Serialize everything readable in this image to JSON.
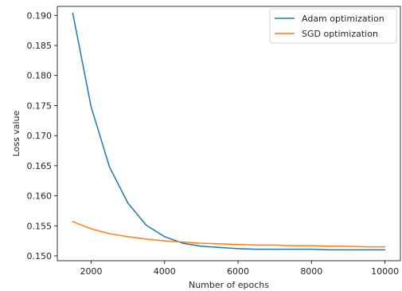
{
  "chart_data": {
    "type": "line",
    "title": "",
    "xlabel": "Number of epochs",
    "ylabel": "Loss value",
    "xlim": [
      1080,
      10420
    ],
    "ylim": [
      0.1492,
      0.1915
    ],
    "xticks": [
      2000,
      4000,
      6000,
      8000,
      10000
    ],
    "xtick_labels": [
      "2000",
      "4000",
      "6000",
      "8000",
      "10000"
    ],
    "yticks": [
      0.15,
      0.155,
      0.16,
      0.165,
      0.17,
      0.175,
      0.18,
      0.185,
      0.19
    ],
    "ytick_labels": [
      "0.150",
      "0.155",
      "0.160",
      "0.165",
      "0.170",
      "0.175",
      "0.180",
      "0.185",
      "0.190"
    ],
    "grid": false,
    "legend_position": "top-right",
    "x": [
      1500,
      2000,
      2500,
      3000,
      3500,
      4000,
      4500,
      5000,
      5500,
      6000,
      6500,
      7000,
      7500,
      8000,
      8500,
      9000,
      9500,
      10000
    ],
    "series": [
      {
        "name": "Adam optimization",
        "color": "#1f77b4",
        "values": [
          0.1904,
          0.1748,
          0.1648,
          0.1588,
          0.1551,
          0.1532,
          0.1521,
          0.1516,
          0.1514,
          0.1512,
          0.1511,
          0.1511,
          0.1511,
          0.1511,
          0.151,
          0.151,
          0.151,
          0.151
        ]
      },
      {
        "name": "SGD optimization",
        "color": "#ff7f0e",
        "values": [
          0.1557,
          0.1545,
          0.1537,
          0.1532,
          0.1528,
          0.1525,
          0.1523,
          0.1521,
          0.152,
          0.1519,
          0.1518,
          0.1518,
          0.1517,
          0.1517,
          0.1516,
          0.1516,
          0.1515,
          0.1515
        ]
      }
    ]
  }
}
